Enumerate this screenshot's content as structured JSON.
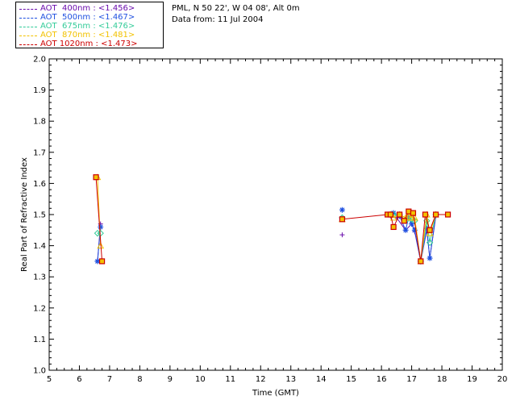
{
  "legend": {
    "items": [
      {
        "label": "AOT  400nm : <1.456>",
        "color": "#6a0dad"
      },
      {
        "label": "AOT  500nm : <1.467>",
        "color": "#1f50e0"
      },
      {
        "label": "AOT  675nm : <1.476>",
        "color": "#33cc99"
      },
      {
        "label": "AOT  870nm : <1.481>",
        "color": "#f2c200"
      },
      {
        "label": "AOT 1020nm : <1.473>",
        "color": "#cc0000"
      }
    ]
  },
  "site": {
    "line1": "PML, N 50 22', W 04 08', Alt 0m",
    "line2": "Data from: 11 Jul 2004"
  },
  "chart_data": {
    "type": "line",
    "xlabel": "Time (GMT)",
    "ylabel": "Real Part of Refractive Index",
    "xlim": [
      5,
      20
    ],
    "ylim": [
      1.0,
      2.0
    ],
    "xticks": [
      "5",
      "6",
      "7",
      "8",
      "9",
      "10",
      "11",
      "12",
      "13",
      "14",
      "15",
      "16",
      "17",
      "18",
      "19",
      "20"
    ],
    "yticks": [
      "1.0",
      "1.1",
      "1.2",
      "1.3",
      "1.4",
      "1.5",
      "1.6",
      "1.7",
      "1.8",
      "1.9",
      "2.0"
    ],
    "series": [
      {
        "name": "AOT  400nm : <1.456>",
        "color": "#6a0dad",
        "marker": "plus",
        "x": [
          6.6,
          6.7,
          14.7,
          16.3,
          16.5,
          16.8,
          17.0,
          17.1,
          17.3,
          17.5,
          17.6,
          17.8
        ],
        "y": [
          1.35,
          1.47,
          1.435,
          1.495,
          1.49,
          1.45,
          1.47,
          1.445,
          1.35,
          1.45,
          1.36,
          1.495
        ]
      },
      {
        "name": "AOT  500nm : <1.467>",
        "color": "#1f50e0",
        "marker": "star",
        "x": [
          6.6,
          6.7,
          14.7,
          16.3,
          16.4,
          16.6,
          16.8,
          16.9,
          17.0,
          17.1,
          17.3,
          17.5,
          17.6,
          17.8
        ],
        "y": [
          1.35,
          1.46,
          1.515,
          1.5,
          1.505,
          1.495,
          1.45,
          1.49,
          1.47,
          1.45,
          1.35,
          1.455,
          1.36,
          1.5
        ]
      },
      {
        "name": "AOT  675nm : <1.476>",
        "color": "#33cc99",
        "marker": "diamond",
        "x": [
          6.6,
          6.7,
          14.7,
          16.3,
          16.4,
          16.6,
          16.8,
          16.9,
          17.0,
          17.1,
          17.3,
          17.5,
          17.6,
          17.8
        ],
        "y": [
          1.44,
          1.44,
          1.49,
          1.5,
          1.5,
          1.5,
          1.48,
          1.49,
          1.485,
          1.48,
          1.35,
          1.48,
          1.41,
          1.5
        ]
      },
      {
        "name": "AOT  870nm : <1.481>",
        "color": "#f2c200",
        "marker": "triangle",
        "x": [
          6.6,
          6.7,
          14.7,
          16.3,
          16.4,
          16.6,
          16.8,
          16.9,
          17.0,
          17.1,
          17.3,
          17.5,
          17.6,
          17.8
        ],
        "y": [
          1.62,
          1.4,
          1.485,
          1.5,
          1.49,
          1.5,
          1.49,
          1.5,
          1.49,
          1.49,
          1.35,
          1.5,
          1.44,
          1.5
        ]
      },
      {
        "name": "AOT 1020nm : <1.473>",
        "color": "#cc0000",
        "marker": "square",
        "x": [
          6.55,
          6.75,
          14.7,
          16.2,
          16.3,
          16.4,
          16.6,
          16.75,
          16.9,
          17.05,
          17.3,
          17.45,
          17.6,
          17.8,
          18.2
        ],
        "y": [
          1.62,
          1.35,
          1.485,
          1.5,
          1.5,
          1.46,
          1.5,
          1.48,
          1.51,
          1.505,
          1.35,
          1.5,
          1.45,
          1.5,
          1.5
        ]
      }
    ]
  }
}
